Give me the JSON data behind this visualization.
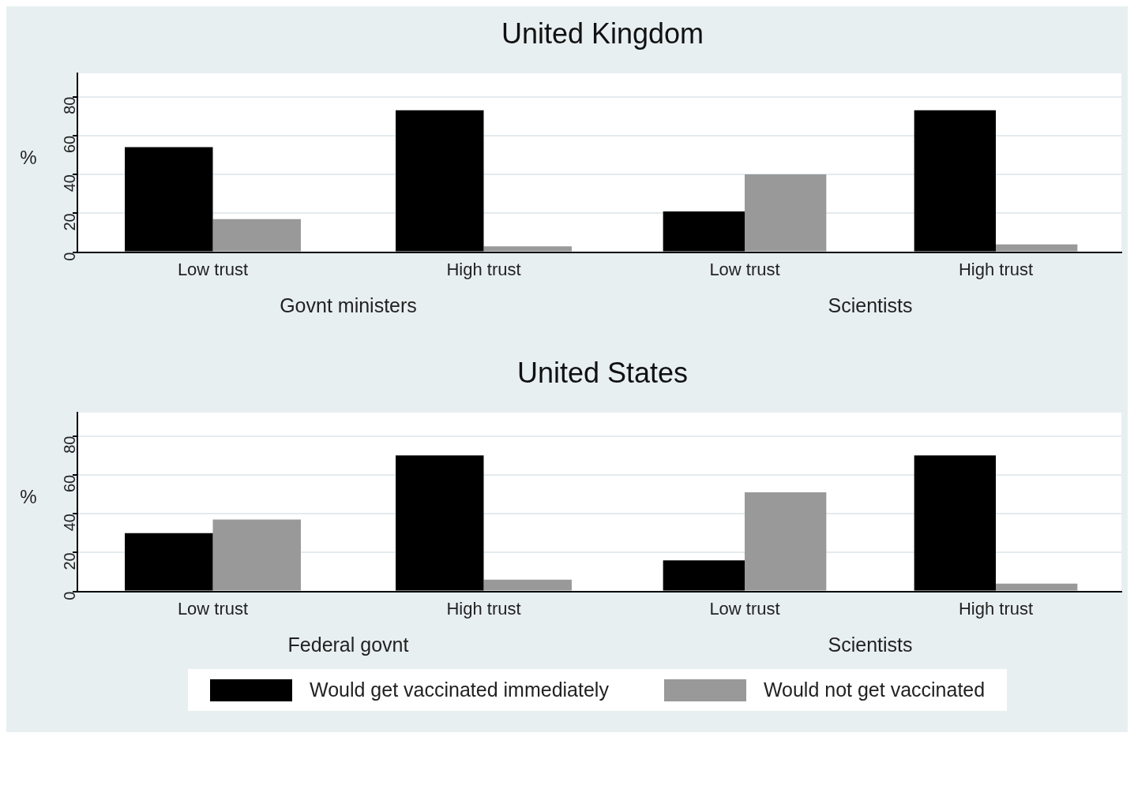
{
  "chart_data": [
    {
      "type": "bar",
      "title": "United Kingdom",
      "ylabel": "%",
      "xlabel": "Govnt ministers",
      "categories": [
        "Low trust",
        "High trust"
      ],
      "series": [
        {
          "color": "#000000",
          "values": [
            54,
            73
          ]
        },
        {
          "color": "#999999",
          "values": [
            17,
            3
          ]
        }
      ],
      "ylim": [
        0,
        92
      ],
      "yticks": [
        0,
        20,
        40,
        60,
        80
      ],
      "grid": "y"
    },
    {
      "type": "bar",
      "xlabel": "Scientists",
      "categories": [
        "Low trust",
        "High trust"
      ],
      "series": [
        {
          "color": "#000000",
          "values": [
            21,
            73
          ]
        },
        {
          "color": "#999999",
          "values": [
            40,
            4
          ]
        }
      ],
      "ylim": [
        0,
        92
      ],
      "yticks": [
        0,
        20,
        40,
        60,
        80
      ],
      "grid": "y",
      "tick_labels": "x"
    },
    {
      "type": "bar",
      "title": "United States",
      "ylabel": "%",
      "xlabel": "Federal govnt",
      "categories": [
        "Low trust",
        "High trust"
      ],
      "series": [
        {
          "color": "#000000",
          "values": [
            30,
            70
          ]
        },
        {
          "color": "#999999",
          "values": [
            37,
            6
          ]
        }
      ],
      "ylim": [
        0,
        92
      ],
      "yticks": [
        0,
        20,
        40,
        60,
        80
      ],
      "grid": "y"
    },
    {
      "type": "bar",
      "xlabel": "Scientists",
      "categories": [
        "Low trust",
        "High trust"
      ],
      "series": [
        {
          "name": "Would get vaccinated immediately",
          "color": "#000000",
          "values": [
            16,
            70
          ]
        },
        {
          "name": "Would not get vaccinated",
          "color": "#999999",
          "values": [
            51,
            4
          ]
        }
      ],
      "ylim": [
        0,
        92
      ],
      "yticks": [
        0,
        20,
        40,
        60,
        80
      ],
      "grid": "y",
      "tick_labels": "x",
      "legend": "bottom"
    }
  ]
}
